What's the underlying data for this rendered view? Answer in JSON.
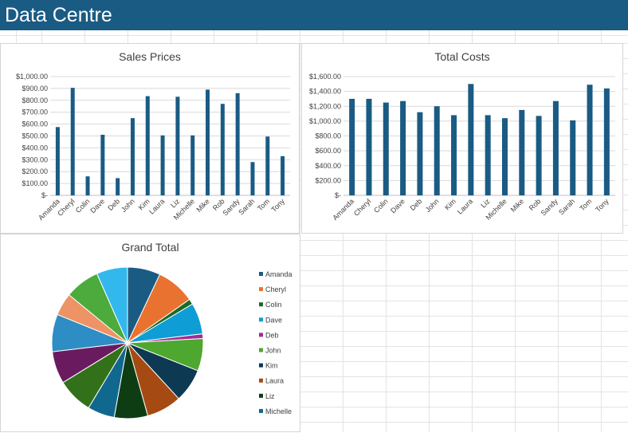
{
  "app": {
    "title": "Data Centre",
    "accent": "#1a5b84"
  },
  "charts": [
    {
      "id": "sales",
      "type": "bar",
      "title": "Sales Prices",
      "color": "#1a5b84",
      "categories": [
        "Amanda",
        "Cheryl",
        "Colin",
        "Dave",
        "Deb",
        "John",
        "Kim",
        "Laura",
        "Liz",
        "Michelle",
        "Mike",
        "Rob",
        "Sandy",
        "Sarah",
        "Tom",
        "Tony"
      ],
      "values": [
        575,
        905,
        160,
        510,
        145,
        650,
        835,
        505,
        830,
        505,
        890,
        770,
        860,
        280,
        495,
        330
      ],
      "ylim": [
        0,
        1000
      ],
      "yticks": [
        "$-",
        "$100.00",
        "$200.00",
        "$300.00",
        "$400.00",
        "$500.00",
        "$600.00",
        "$700.00",
        "$800.00",
        "$900.00",
        "$1,000.00"
      ],
      "grid": true
    },
    {
      "id": "costs",
      "type": "bar",
      "title": "Total Costs",
      "color": "#1a5b84",
      "categories": [
        "Amanda",
        "Cheryl",
        "Colin",
        "Dave",
        "Deb",
        "John",
        "Kim",
        "Laura",
        "Liz",
        "Michelle",
        "Mike",
        "Rob",
        "Sandy",
        "Sarah",
        "Tom",
        "Tony"
      ],
      "values": [
        1300,
        1300,
        1250,
        1270,
        1120,
        1200,
        1080,
        1500,
        1080,
        1040,
        1150,
        1070,
        1270,
        1010,
        1490,
        1440
      ],
      "ylim": [
        0,
        1600
      ],
      "yticks": [
        "$-",
        "$200.00",
        "$400.00",
        "$600.00",
        "$800.00",
        "$1,000.00",
        "$1,200.00",
        "$1,400.00",
        "$1,600.00"
      ],
      "grid": true
    },
    {
      "id": "grand",
      "type": "pie",
      "title": "Grand Total",
      "labels": [
        "Amanda",
        "Cheryl",
        "Colin",
        "Dave",
        "Deb",
        "John",
        "Kim",
        "Laura",
        "Liz",
        "Michelle",
        "Mike",
        "Rob",
        "Sandy",
        "Sarah",
        "Tom",
        "Tony"
      ],
      "values": [
        1875,
        2205,
        305,
        1780,
        265,
        1850,
        1915,
        2005,
        1910,
        1545,
        2040,
        1840,
        2130,
        1290,
        1985,
        1770
      ],
      "colors": [
        "#1a5b84",
        "#ea7231",
        "#196b24",
        "#0e9ed5",
        "#a02b93",
        "#4ea72e",
        "#0d3a52",
        "#a54a12",
        "#0e3d14",
        "#11688e",
        "#327119",
        "#6a1b60",
        "#2e8dc4",
        "#ee9365",
        "#4cab3c",
        "#33b8ed"
      ],
      "legend_items": [
        "Amanda",
        "Cheryl",
        "Colin",
        "Dave",
        "Deb",
        "John",
        "Kim",
        "Laura",
        "Liz",
        "Michelle"
      ],
      "legend_position": "right"
    }
  ]
}
